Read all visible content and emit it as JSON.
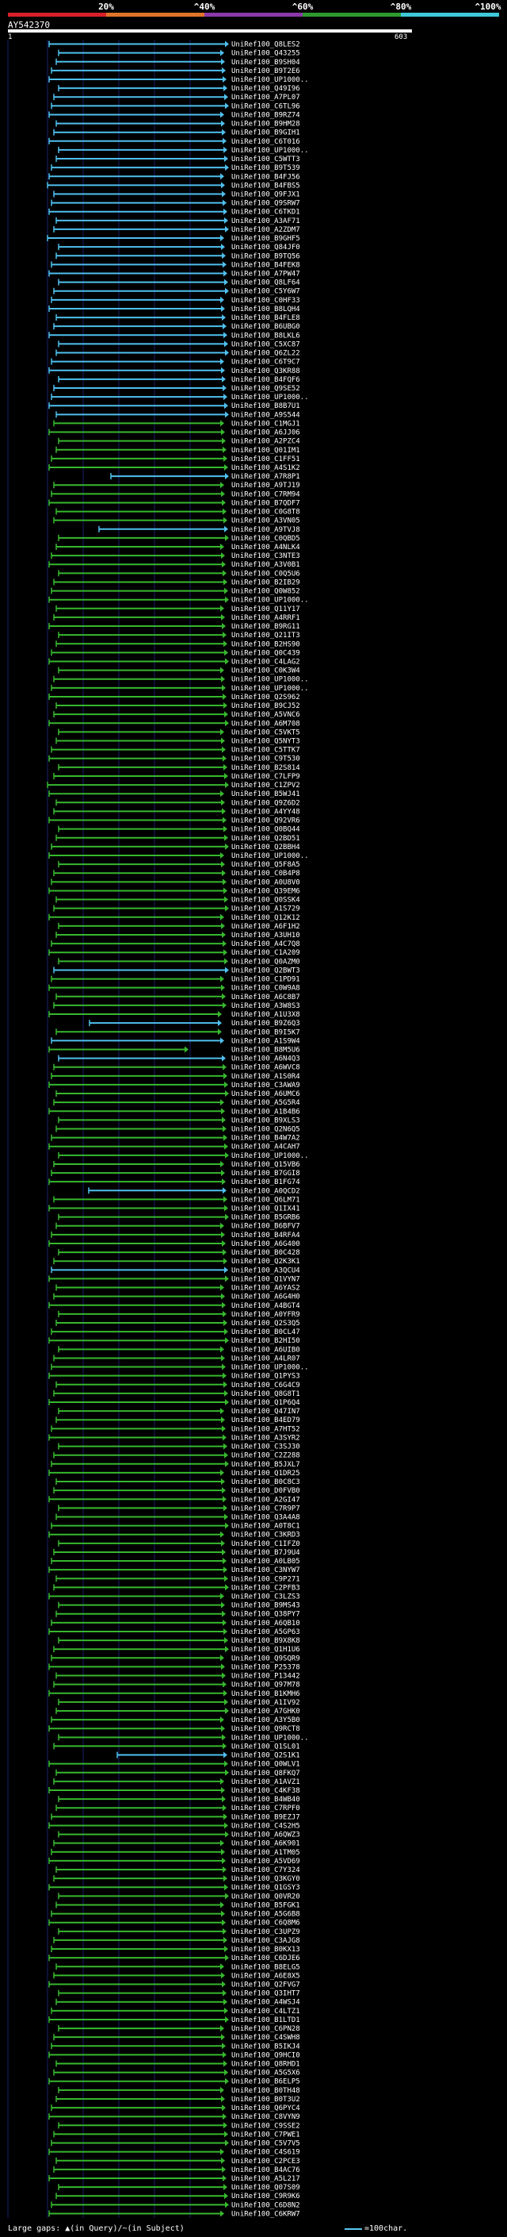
{
  "coverage_scale": {
    "labels": [
      "20%",
      "^40%",
      "^60%",
      "^80%",
      "^100%"
    ],
    "colors": [
      "#d9202a",
      "#e0742a",
      "#8a3aa8",
      "#2e9a2e",
      "#3ec8d8"
    ]
  },
  "query": {
    "name": "AY542370",
    "start": "1",
    "end": "603"
  },
  "hits": [
    "UniRef100_Q8LES2",
    "UniRef100_Q43255",
    "UniRef100_B9SH04",
    "UniRef100_B9T2E6",
    "UniRef100_UP1000..",
    "UniRef100_Q49I96",
    "UniRef100_A7PL07",
    "UniRef100_C6TL96",
    "UniRef100_B9RZ74",
    "UniRef100_B9HM28",
    "UniRef100_B9GIH1",
    "UniRef100_C6T016",
    "UniRef100_UP1000..",
    "UniRef100_C5WTT3",
    "UniRef100_B9T539",
    "UniRef100_B4FJ56",
    "UniRef100_B4FBS5",
    "UniRef100_Q9FJX1",
    "UniRef100_Q9SRW7",
    "UniRef100_C6TKD1",
    "UniRef100_A3AF71",
    "UniRef100_A2ZDM7",
    "UniRef100_B9GHF5",
    "UniRef100_Q84JF0",
    "UniRef100_B9TQ56",
    "UniRef100_B4FEK8",
    "UniRef100_A7PW47",
    "UniRef100_Q8LF64",
    "UniRef100_C5Y6W7",
    "UniRef100_C0HF33",
    "UniRef100_B8LQH4",
    "UniRef100_B4FLE8",
    "UniRef100_B6UBG0",
    "UniRef100_B8LKL6",
    "UniRef100_C5XC87",
    "UniRef100_Q6ZL22",
    "UniRef100_C6T9C7",
    "UniRef100_Q3KR88",
    "UniRef100_B4FQF6",
    "UniRef100_Q9SE52",
    "UniRef100_UP1000..",
    "UniRef100_B8B7U1",
    "UniRef100_A9S544",
    "UniRef100_C1MGJ1",
    "UniRef100_A6JJ06",
    "UniRef100_A2PZC4",
    "UniRef100_Q01IM1",
    "UniRef100_C1FF51",
    "UniRef100_A4S1K2",
    "UniRef100_A7R8P1",
    "UniRef100_A9TJ19",
    "UniRef100_C7RM94",
    "UniRef100_B7QDF7",
    "UniRef100_C0G8T8",
    "UniRef100_A3VN05",
    "UniRef100_A9TVJ8",
    "UniRef100_C0QBD5",
    "UniRef100_A4NLK4",
    "UniRef100_C3NTE3",
    "UniRef100_A3V0B1",
    "UniRef100_C0Q5U6",
    "UniRef100_B2IB29",
    "UniRef100_Q0W852",
    "UniRef100_UP1000..",
    "UniRef100_Q11Y17",
    "UniRef100_A4RRF1",
    "UniRef100_B9RG11",
    "UniRef100_Q21IT3",
    "UniRef100_B2HS90",
    "UniRef100_Q0C439",
    "UniRef100_C4LAG2",
    "UniRef100_C0K3W4",
    "UniRef100_UP1000..",
    "UniRef100_UP1000..",
    "UniRef100_Q2S962",
    "UniRef100_B9CJ52",
    "UniRef100_A5VNC6",
    "UniRef100_A6M708",
    "UniRef100_C5VKT5",
    "UniRef100_Q5NYT3",
    "UniRef100_C5TTK7",
    "UniRef100_C9T530",
    "UniRef100_B2S814",
    "UniRef100_C7LFP9",
    "UniRef100_C1ZPV2",
    "UniRef100_B5WJ41",
    "UniRef100_Q9Z6D2",
    "UniRef100_A4YY48",
    "UniRef100_Q92VR6",
    "UniRef100_Q0BQ44",
    "UniRef100_Q2BD51",
    "UniRef100_Q2BBH4",
    "UniRef100_UP1000..",
    "UniRef100_Q5F8A5",
    "UniRef100_C0B4P8",
    "UniRef100_A0U8V0",
    "UniRef100_Q39EM6",
    "UniRef100_Q0SSK4",
    "UniRef100_A1S729",
    "UniRef100_Q12K12",
    "UniRef100_A6F1H2",
    "UniRef100_A3UH10",
    "UniRef100_A4C7Q8",
    "UniRef100_C1A209",
    "UniRef100_Q0AZM0",
    "UniRef100_Q2BWT3",
    "UniRef100_C1PD91",
    "UniRef100_C0W9A8",
    "UniRef100_A6C8B7",
    "UniRef100_A3W8S3",
    "UniRef100_A1U3X8",
    "UniRef100_B9Z6Q3",
    "UniRef100_B9I5K7",
    "UniRef100_A1S9W4",
    "UniRef100_B8M5U6",
    "UniRef100_A6N4Q3",
    "UniRef100_A6WVC8",
    "UniRef100_A1S0R4",
    "UniRef100_C3AWA9",
    "UniRef100_A6UMC6",
    "UniRef100_A5G5R4",
    "UniRef100_A1B4B6",
    "UniRef100_B9XLS3",
    "UniRef100_Q2N6Q5",
    "UniRef100_B4W7A2",
    "UniRef100_A4CAH7",
    "UniRef100_UP1000..",
    "UniRef100_Q15VB6",
    "UniRef100_B7GGI8",
    "UniRef100_B1FG74",
    "UniRef100_A0QCD2",
    "UniRef100_Q6LM71",
    "UniRef100_Q1IX41",
    "UniRef100_B5GRB6",
    "UniRef100_B6BFV7",
    "UniRef100_B4RFA4",
    "UniRef100_A6G400",
    "UniRef100_B0C428",
    "UniRef100_Q2K3K1",
    "UniRef100_A3QCU4",
    "UniRef100_Q1VYN7",
    "UniRef100_A6YAS2",
    "UniRef100_A6G4H0",
    "UniRef100_A4BGT4",
    "UniRef100_A0YFR9",
    "UniRef100_Q2S3Q5",
    "UniRef100_B0CL47",
    "UniRef100_B2HI50",
    "UniRef100_A6UIB0",
    "UniRef100_A4LR07",
    "UniRef100_UP1000..",
    "UniRef100_Q1PYS3",
    "UniRef100_C6G4C9",
    "UniRef100_Q8G8T1",
    "UniRef100_Q1P6Q4",
    "UniRef100_Q47IN7",
    "UniRef100_B4ED79",
    "UniRef100_A7HT52",
    "UniRef100_A3SYR2",
    "UniRef100_C3SJ30",
    "UniRef100_C2Z288",
    "UniRef100_B5JXL7",
    "UniRef100_Q1DR25",
    "UniRef100_B0C8C3",
    "UniRef100_D0FVB0",
    "UniRef100_A2GI47",
    "UniRef100_C7R9P7",
    "UniRef100_Q3A4A8",
    "UniRef100_A0T8C1",
    "UniRef100_C3KRD3",
    "UniRef100_C1IFZ0",
    "UniRef100_B7J9U4",
    "UniRef100_A0LB05",
    "UniRef100_C3NYW7",
    "UniRef100_C9P271",
    "UniRef100_C2PFB3",
    "UniRef100_C3LZS3",
    "UniRef100_B9MS43",
    "UniRef100_Q38PY7",
    "UniRef100_A6QB10",
    "UniRef100_A5GP63",
    "UniRef100_B9X8K8",
    "UniRef100_Q1H1U6",
    "UniRef100_Q9SQR9",
    "UniRef100_P25378",
    "UniRef100_P13442",
    "UniRef100_Q97M78",
    "UniRef100_B1KMH6",
    "UniRef100_A1IV92",
    "UniRef100_A7GHK0",
    "UniRef100_A3Y5B0",
    "UniRef100_Q9RCT8",
    "UniRef100_UP1000..",
    "UniRef100_Q1SL01",
    "UniRef100_Q2S1K1",
    "UniRef100_Q0WLV1",
    "UniRef100_Q8FKQ7",
    "UniRef100_A1AVZ1",
    "UniRef100_C4KF38",
    "UniRef100_B4WB40",
    "UniRef100_C7RPF0",
    "UniRef100_B9EZJ7",
    "UniRef100_C4S2H5",
    "UniRef100_A6QWZ3",
    "UniRef100_A6K901",
    "UniRef100_A1TM05",
    "UniRef100_A5VD69",
    "UniRef100_C7Y324",
    "UniRef100_Q3KGY0",
    "UniRef100_Q1GSY3",
    "UniRef100_Q0VR20",
    "UniRef100_B5FGK1",
    "UniRef100_A5G6B8",
    "UniRef100_C6Q8M6",
    "UniRef100_C3UPZ9",
    "UniRef100_C3AJG8",
    "UniRef100_B0KX13",
    "UniRef100_C6DJE6",
    "UniRef100_B8ELG5",
    "UniRef100_A6E8X5",
    "UniRef100_Q2FVG7",
    "UniRef100_Q3IHT7",
    "UniRef100_A4WSJ4",
    "UniRef100_C4LTZ1",
    "UniRef100_B1LTD1",
    "UniRef100_C6PN28",
    "UniRef100_C4SWH8",
    "UniRef100_B5IKJ4",
    "UniRef100_Q9HCI0",
    "UniRef100_Q8RHD1",
    "UniRef100_A5G5X6",
    "UniRef100_B6ELP5",
    "UniRef100_B0TH48",
    "UniRef100_B0T3U2",
    "UniRef100_Q6PYC4",
    "UniRef100_C8VYN9",
    "UniRef100_C9SSE2",
    "UniRef100_C7PWE1",
    "UniRef100_C5V7V5",
    "UniRef100_C4S619",
    "UniRef100_C2PCE3",
    "UniRef100_B4AC76",
    "UniRef100_A5L217",
    "UniRef100_Q07S09",
    "UniRef100_C9R9K6",
    "UniRef100_C6D8N2",
    "UniRef100_C6KRW7"
  ],
  "footer": {
    "left_text": "Large gaps: ▲(in Query)/~(in Subject)",
    "right_text": "=100char."
  }
}
